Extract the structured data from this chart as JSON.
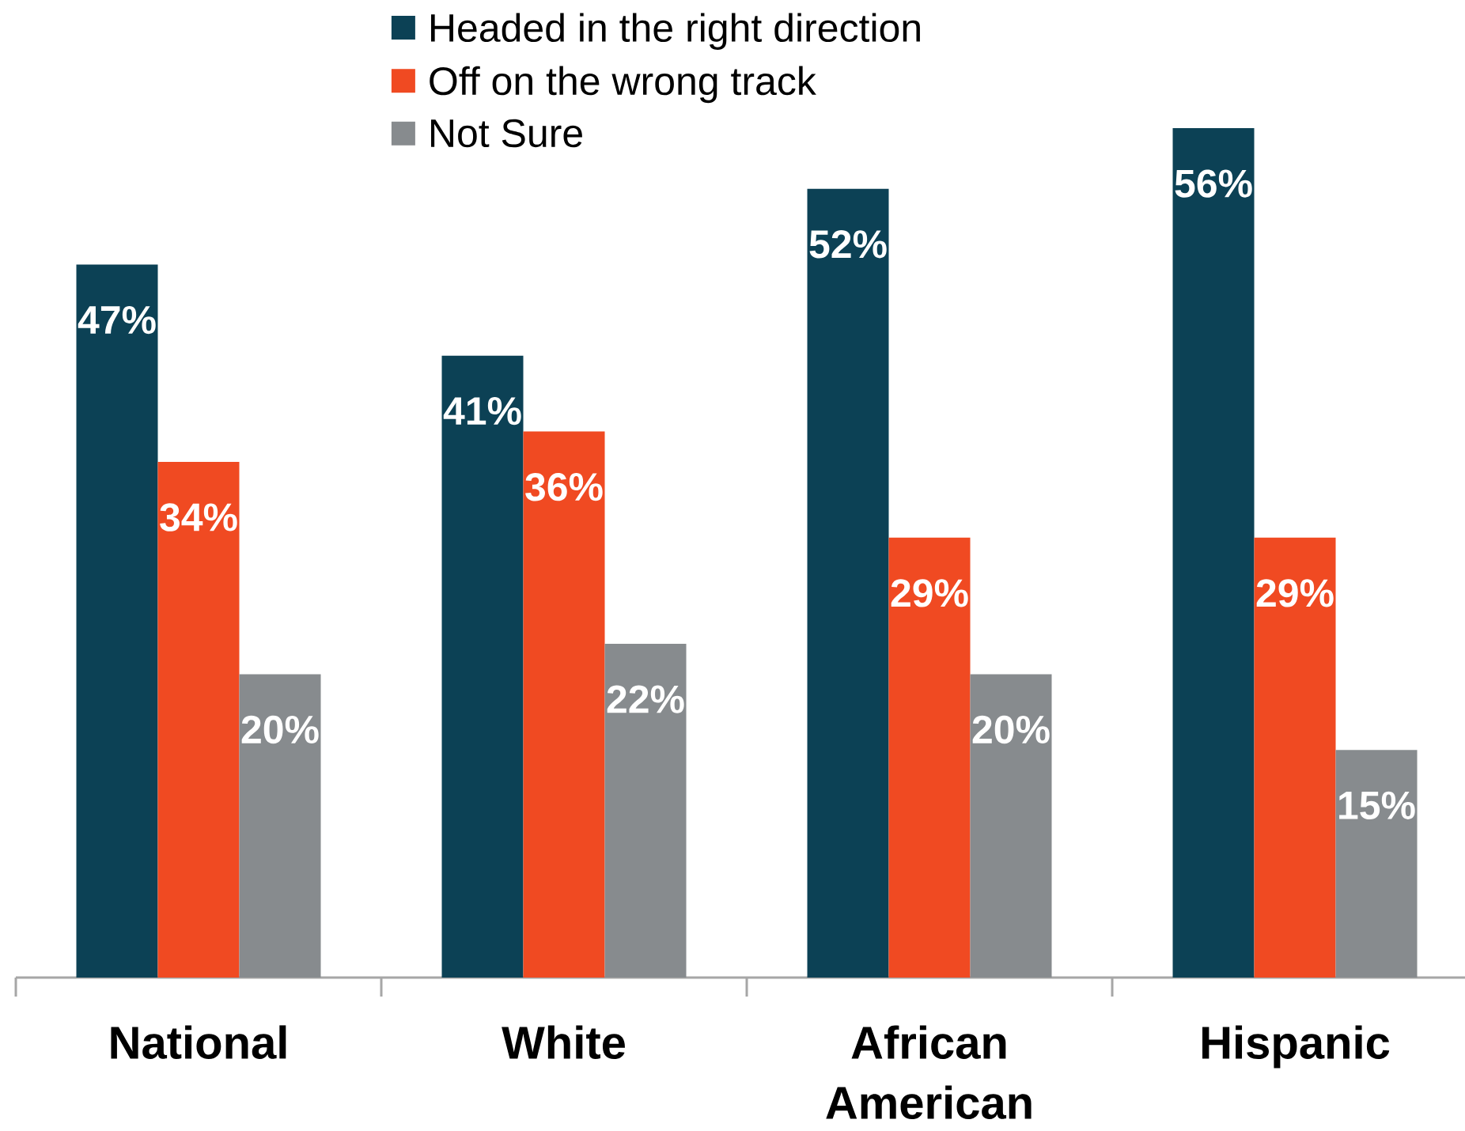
{
  "chart_data": {
    "type": "bar",
    "categories": [
      "National",
      "White",
      "African American",
      "Hispanic"
    ],
    "series": [
      {
        "name": "Headed in the right direction",
        "color": "#0c4155",
        "values": [
          47,
          41,
          52,
          56
        ],
        "value_labels": [
          "47%",
          "41%",
          "52%",
          "56%"
        ]
      },
      {
        "name": "Off on the wrong track",
        "color": "#f04a22",
        "values": [
          34,
          36,
          29,
          29
        ],
        "value_labels": [
          "34%",
          "36%",
          "29%",
          "29%"
        ]
      },
      {
        "name": "Not Sure",
        "color": "#878b8e",
        "values": [
          20,
          22,
          20,
          15
        ],
        "value_labels": [
          "20%",
          "22%",
          "20%",
          "15%"
        ]
      }
    ],
    "legend": "top",
    "tick_labels": "x"
  }
}
